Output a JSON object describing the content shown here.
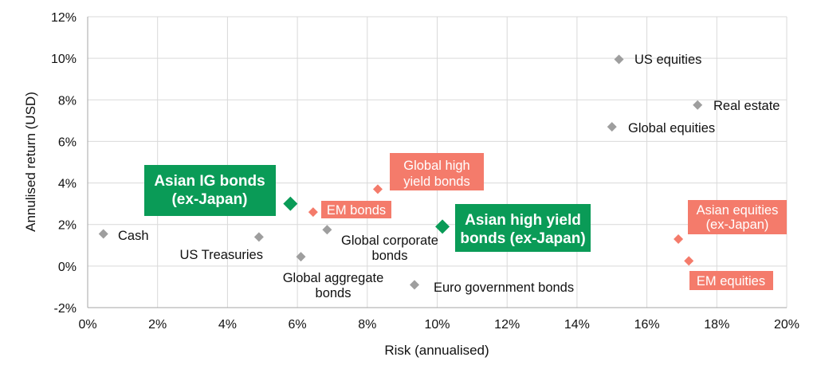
{
  "chart_data": {
    "type": "scatter",
    "title": "",
    "xlabel": "Risk (annualised)",
    "ylabel": "Annulised return (USD)",
    "xlim": [
      0,
      20
    ],
    "ylim": [
      -2,
      12
    ],
    "xticks": [
      0,
      2,
      4,
      6,
      8,
      10,
      12,
      14,
      16,
      18,
      20
    ],
    "yticks": [
      -2,
      0,
      2,
      4,
      6,
      8,
      10,
      12
    ],
    "xtick_labels": [
      "0%",
      "2%",
      "4%",
      "6%",
      "8%",
      "10%",
      "12%",
      "14%",
      "16%",
      "18%",
      "20%"
    ],
    "ytick_labels": [
      "-2%",
      "0%",
      "2%",
      "4%",
      "6%",
      "8%",
      "10%",
      "12%"
    ],
    "grid": true,
    "legend": "none",
    "colors": {
      "grey": "#9e9e9e",
      "salmon": "#f47b6b",
      "green": "#0a9b57"
    },
    "points": [
      {
        "label": "Cash",
        "x": 0.45,
        "y": 1.55,
        "style": "grey"
      },
      {
        "label": "US Treasuries",
        "x": 4.9,
        "y": 1.4,
        "style": "grey"
      },
      {
        "label": "Global aggregate bonds",
        "x": 6.1,
        "y": 0.45,
        "style": "grey"
      },
      {
        "label": "Asian IG bonds (ex-Japan)",
        "x": 5.8,
        "y": 3.0,
        "style": "green"
      },
      {
        "label": "EM bonds",
        "x": 6.45,
        "y": 2.6,
        "style": "salmon"
      },
      {
        "label": "Global corporate bonds",
        "x": 6.85,
        "y": 1.75,
        "style": "grey"
      },
      {
        "label": "Global high yield bonds",
        "x": 8.3,
        "y": 3.7,
        "style": "salmon"
      },
      {
        "label": "Euro government bonds",
        "x": 9.35,
        "y": -0.9,
        "style": "grey"
      },
      {
        "label": "Asian high yield bonds (ex-Japan)",
        "x": 10.15,
        "y": 1.9,
        "style": "green"
      },
      {
        "label": "Global equities",
        "x": 15.0,
        "y": 6.7,
        "style": "grey"
      },
      {
        "label": "US equities",
        "x": 15.2,
        "y": 9.95,
        "style": "grey"
      },
      {
        "label": "Real estate",
        "x": 17.45,
        "y": 7.75,
        "style": "grey"
      },
      {
        "label": "Asian equities (ex-Japan)",
        "x": 16.9,
        "y": 1.3,
        "style": "salmon"
      },
      {
        "label": "EM equities",
        "x": 17.2,
        "y": 0.25,
        "style": "salmon"
      }
    ],
    "labels": [
      {
        "id": "cash",
        "lines": [
          "Cash"
        ],
        "style": "grey"
      },
      {
        "id": "ust",
        "lines": [
          "US Treasuries"
        ],
        "style": "grey"
      },
      {
        "id": "gagg",
        "lines": [
          "Global aggregate",
          "bonds"
        ],
        "style": "grey"
      },
      {
        "id": "asig",
        "lines": [
          "Asian IG bonds",
          "(ex-Japan)"
        ],
        "style": "green"
      },
      {
        "id": "emb",
        "lines": [
          "EM bonds"
        ],
        "style": "salmon"
      },
      {
        "id": "gcorp",
        "lines": [
          "Global corporate",
          "bonds"
        ],
        "style": "grey"
      },
      {
        "id": "ghy",
        "lines": [
          "Global high",
          "yield bonds"
        ],
        "style": "salmon"
      },
      {
        "id": "egov",
        "lines": [
          "Euro government bonds"
        ],
        "style": "grey"
      },
      {
        "id": "ashy",
        "lines": [
          "Asian high yield",
          "bonds (ex-Japan)"
        ],
        "style": "green"
      },
      {
        "id": "geq",
        "lines": [
          "Global equities"
        ],
        "style": "grey"
      },
      {
        "id": "useq",
        "lines": [
          "US equities"
        ],
        "style": "grey"
      },
      {
        "id": "re",
        "lines": [
          "Real estate"
        ],
        "style": "grey"
      },
      {
        "id": "aseq",
        "lines": [
          "Asian equities",
          "(ex-Japan)"
        ],
        "style": "salmon"
      },
      {
        "id": "emeq",
        "lines": [
          "EM equities"
        ],
        "style": "salmon"
      }
    ]
  }
}
